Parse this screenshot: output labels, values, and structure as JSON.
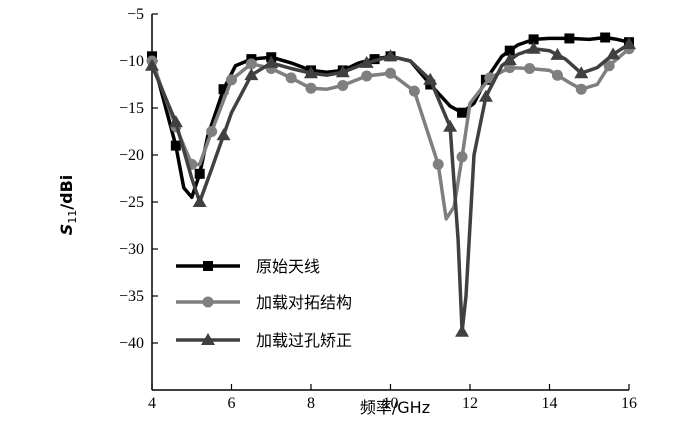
{
  "chart_data": {
    "type": "line",
    "xlabel": "频率/GHz",
    "ylabel": "S11/dBi",
    "ylabel_main": "S",
    "ylabel_sub": "11",
    "ylabel_rest": "/dBi",
    "xlim": [
      4,
      16
    ],
    "ylim": [
      -45,
      -5
    ],
    "xticks": [
      "4",
      "6",
      "8",
      "10",
      "12",
      "14",
      "16"
    ],
    "yticks": [
      "-5",
      "-10",
      "-15",
      "-20",
      "-25",
      "-30",
      "-35",
      "-40"
    ],
    "grid": false,
    "legend_position": "bottom-left",
    "series": [
      {
        "name": "原始天线",
        "color": "#000000",
        "marker": "square",
        "x": [
          4.0,
          4.6,
          4.8,
          5.0,
          5.2,
          5.4,
          5.8,
          6.1,
          6.5,
          7.0,
          7.5,
          8.0,
          8.4,
          8.8,
          9.2,
          9.6,
          10.0,
          10.5,
          11.0,
          11.5,
          11.8,
          12.1,
          12.4,
          12.8,
          13.2,
          13.6,
          14.0,
          14.5,
          15.0,
          15.4,
          15.7,
          16.0
        ],
        "y": [
          -9.5,
          -19.0,
          -23.5,
          -24.5,
          -22.0,
          -18.0,
          -13.0,
          -10.5,
          -9.8,
          -9.6,
          -10.2,
          -11.0,
          -11.2,
          -11.0,
          -10.2,
          -9.8,
          -9.5,
          -10.0,
          -12.5,
          -14.8,
          -15.5,
          -14.5,
          -12.0,
          -9.5,
          -8.3,
          -7.7,
          -7.6,
          -7.6,
          -7.7,
          -7.5,
          -7.7,
          -8.0
        ]
      },
      {
        "name": "加载对拓结构",
        "color": "#7f7f7f",
        "marker": "circle",
        "x": [
          4.0,
          4.6,
          5.0,
          5.2,
          5.5,
          6.0,
          6.5,
          7.0,
          7.5,
          8.0,
          8.4,
          8.8,
          9.4,
          10.0,
          10.6,
          11.2,
          11.4,
          11.6,
          11.8,
          12.0,
          12.5,
          13.0,
          13.5,
          14.0,
          14.5,
          14.8,
          15.2,
          15.5,
          16.0
        ],
        "y": [
          -10.0,
          -17.0,
          -21.0,
          -21.0,
          -17.5,
          -12.0,
          -10.3,
          -10.8,
          -11.8,
          -12.9,
          -13.0,
          -12.6,
          -11.6,
          -11.3,
          -13.2,
          -21.0,
          -26.8,
          -25.5,
          -20.2,
          -14.5,
          -11.8,
          -10.7,
          -10.8,
          -11.0,
          -12.3,
          -13.0,
          -12.5,
          -10.5,
          -8.7
        ]
      },
      {
        "name": "加载过孔矫正",
        "color": "#404040",
        "marker": "triangle",
        "x": [
          4.0,
          4.6,
          5.0,
          5.2,
          5.5,
          6.0,
          6.5,
          7.0,
          7.5,
          8.0,
          8.4,
          8.8,
          9.4,
          10.0,
          10.5,
          11.0,
          11.5,
          11.7,
          11.8,
          11.9,
          12.1,
          12.4,
          12.8,
          13.2,
          13.6,
          14.0,
          14.4,
          14.8,
          15.2,
          15.6,
          16.0
        ],
        "y": [
          -10.5,
          -16.5,
          -22.5,
          -25.0,
          -21.5,
          -15.5,
          -11.5,
          -10.2,
          -10.8,
          -11.3,
          -11.5,
          -11.2,
          -10.2,
          -9.5,
          -10.0,
          -12.0,
          -17.0,
          -29.0,
          -38.8,
          -35.0,
          -20.0,
          -13.8,
          -10.5,
          -9.3,
          -8.7,
          -8.9,
          -9.8,
          -11.3,
          -10.7,
          -9.3,
          -8.2
        ]
      }
    ],
    "marker_x": [
      [
        4.0,
        4.6,
        5.2,
        5.8,
        6.5,
        7.0,
        8.0,
        8.8,
        9.6,
        10.0,
        11.0,
        11.8,
        12.4,
        13.0,
        13.6,
        14.5,
        15.4,
        16.0
      ],
      [
        4.0,
        4.6,
        5.0,
        5.5,
        6.0,
        6.5,
        7.0,
        7.5,
        8.0,
        8.8,
        9.4,
        10.0,
        10.6,
        11.2,
        11.8,
        12.5,
        13.0,
        13.5,
        14.2,
        14.8,
        15.5,
        16.0
      ],
      [
        4.0,
        4.6,
        5.2,
        5.8,
        6.5,
        7.0,
        8.0,
        8.8,
        9.4,
        10.0,
        11.0,
        11.5,
        11.8,
        12.4,
        13.0,
        13.6,
        14.2,
        14.8,
        15.6,
        16.0
      ]
    ]
  }
}
